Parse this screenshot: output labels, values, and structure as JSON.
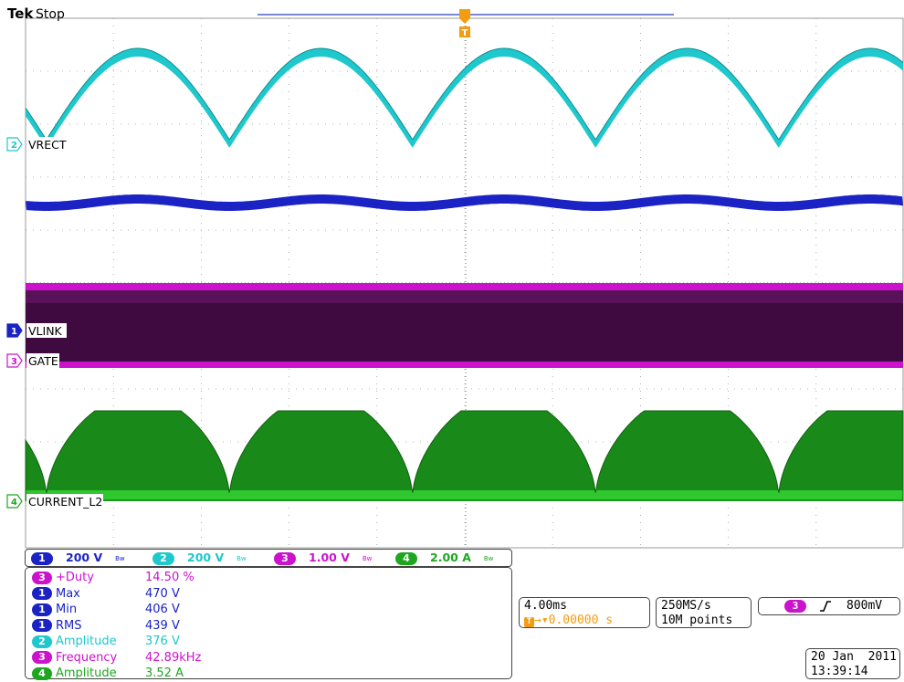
{
  "header": {
    "brand": "Tek",
    "status": "Stop"
  },
  "trigger_marker": {
    "label": "T"
  },
  "colors": {
    "ch1": "#1b23c4",
    "ch2": "#1ec8cc",
    "ch3": "#cc13cc",
    "ch4": "#1fa61f",
    "ch3_fill": "#3f0a3f",
    "trigger": "#f39c12",
    "grid": "#9a9a9a"
  },
  "channels": [
    {
      "id": "1",
      "label": "VLINK"
    },
    {
      "id": "2",
      "label": "VRECT"
    },
    {
      "id": "3",
      "label": "GATE"
    },
    {
      "id": "4",
      "label": "CURRENT_L2"
    }
  ],
  "scales": [
    {
      "ch": "1",
      "value": "200 V"
    },
    {
      "ch": "2",
      "value": "200 V"
    },
    {
      "ch": "3",
      "value": "1.00 V"
    },
    {
      "ch": "4",
      "value": "2.00 A"
    }
  ],
  "bw_symbol": "Bw",
  "measurements": [
    {
      "ch": "3",
      "name": "+Duty",
      "value": "14.50 %"
    },
    {
      "ch": "1",
      "name": "Max",
      "value": "470 V"
    },
    {
      "ch": "1",
      "name": "Min",
      "value": "406 V"
    },
    {
      "ch": "1",
      "name": "RMS",
      "value": "439 V"
    },
    {
      "ch": "2",
      "name": "Amplitude",
      "value": "376 V"
    },
    {
      "ch": "3",
      "name": "Frequency",
      "value": "42.89kHz"
    },
    {
      "ch": "4",
      "name": "Amplitude",
      "value": "3.52 A"
    }
  ],
  "timebase": {
    "per_div": "4.00ms",
    "delay": "0.00000 s"
  },
  "acquisition": {
    "rate": "250MS/s",
    "record": "10M points"
  },
  "trigger": {
    "source": "3",
    "slope_icon": "rising-edge",
    "level": "800mV"
  },
  "datetime": {
    "date": "20 Jan  2011",
    "time": "13:39:14"
  }
}
